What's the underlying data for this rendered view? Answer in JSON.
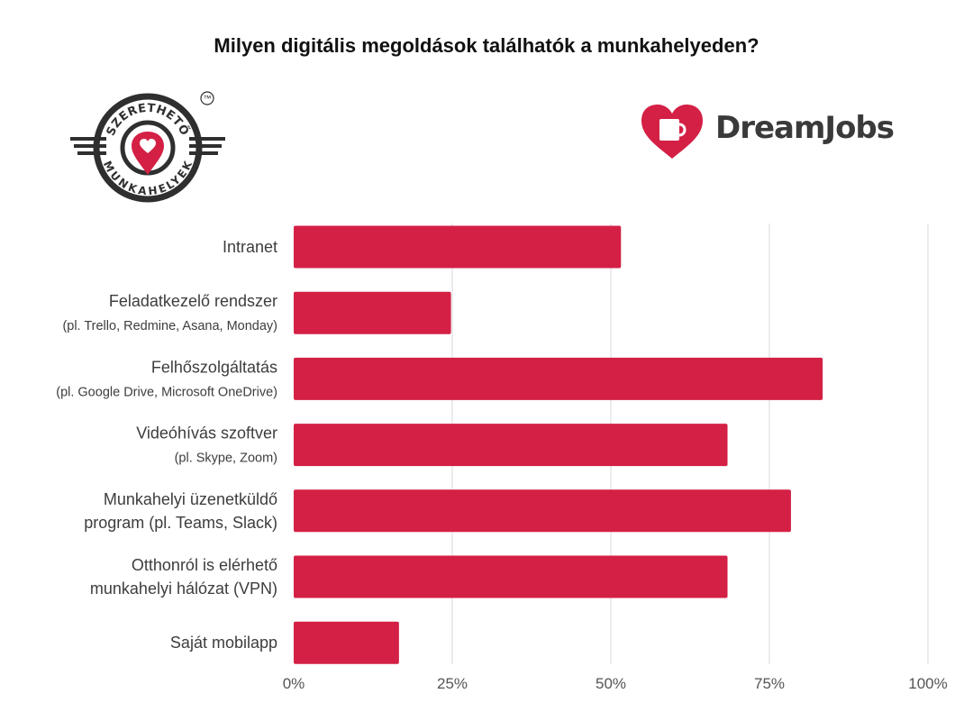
{
  "header": {
    "title": "Milyen digitális megoldások találhatók a munkahelyeden?"
  },
  "logos": {
    "left": {
      "top_text": "SZERETHETŐ",
      "bottom_text": "MUNKAHELYEK",
      "mark": "™",
      "icon": "heart-pin-icon"
    },
    "right": {
      "brand_text": "DreamJobs",
      "icon": "heart-mug-icon"
    }
  },
  "colors": {
    "bar": "#d42045",
    "grid": "#d9d9d9",
    "text": "#3d3d3d",
    "logo_dark": "#2f2f2f"
  },
  "chart_data": {
    "type": "bar",
    "orientation": "horizontal",
    "title": "Milyen digitális megoldások találhatók a munkahelyeden?",
    "categories": [
      {
        "lines": [
          "Intranet"
        ]
      },
      {
        "lines": [
          "Feladatkezelő rendszer",
          "(pl. Trello, Redmine, Asana, Monday)"
        ],
        "sub_line": 1
      },
      {
        "lines": [
          "Felhőszolgáltatás",
          "(pl. Google Drive, Microsoft OneDrive)"
        ],
        "sub_line": 1
      },
      {
        "lines": [
          "Videóhívás szoftver",
          "(pl. Skype,  Zoom)"
        ],
        "sub_line": 1
      },
      {
        "lines": [
          "Munkahelyi üzenetküldő",
          "program (pl. Teams, Slack)"
        ]
      },
      {
        "lines": [
          "Otthonról is elérhető",
          "munkahelyi hálózat (VPN)"
        ]
      },
      {
        "lines": [
          "Saját mobilapp"
        ]
      }
    ],
    "values": [
      51.6,
      24.8,
      83.4,
      68.4,
      78.4,
      68.4,
      16.6
    ],
    "xlim": [
      0,
      100
    ],
    "xticks": [
      0,
      25,
      50,
      75,
      100
    ],
    "xtick_labels": [
      "0%",
      "25%",
      "50%",
      "75%",
      "100%"
    ],
    "grid": true,
    "legend": "none"
  }
}
